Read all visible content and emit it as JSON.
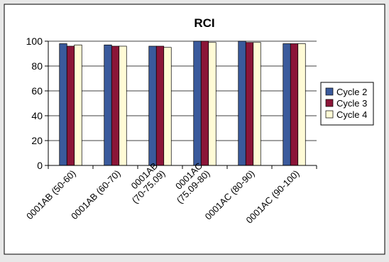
{
  "chart_data": {
    "type": "bar",
    "title": "RCI",
    "categories": [
      "0001AB (50-60)",
      "0001AB (60-70)",
      "0001AB (70-75.09)",
      "0001AC (75.09-80)",
      "0001AC (80-90)",
      "0001AC (90-100)"
    ],
    "category_label_lines": [
      [
        "0001AB (50-60)"
      ],
      [
        "0001AB (60-70)"
      ],
      [
        "0001AB",
        "(70-75.09)"
      ],
      [
        "0001AC",
        "(75.09-80)"
      ],
      [
        "0001AC (80-90)"
      ],
      [
        "0001AC (90-100)"
      ]
    ],
    "series": [
      {
        "name": "Cycle 2",
        "color": "#3a5a9c",
        "values": [
          98,
          97,
          96,
          100,
          100,
          98
        ]
      },
      {
        "name": "Cycle 3",
        "color": "#8b1538",
        "values": [
          96,
          96,
          96,
          100,
          99,
          98
        ]
      },
      {
        "name": "Cycle 4",
        "color": "#fffbd6",
        "values": [
          97,
          96,
          95,
          99,
          99,
          98
        ]
      }
    ],
    "ylim": [
      0,
      100
    ],
    "yticks": [
      0,
      20,
      40,
      60,
      80,
      100
    ],
    "grid": true,
    "legend": "right",
    "xlabel": "",
    "ylabel": ""
  }
}
